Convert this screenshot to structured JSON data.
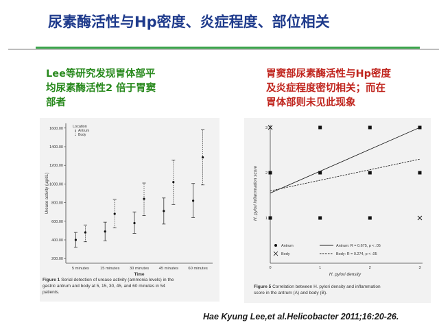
{
  "slide": {
    "title": "尿素酶活性与Hp密度、炎症程度、部位相关",
    "left_note": [
      "Lee等研究发现胃体部平",
      "均尿素酶活性2 倍于胃窦",
      "部者"
    ],
    "right_note": [
      "胃窦部尿素酶活性与Hp密度",
      "及炎症程度密切相关；而在",
      "胃体部则未见此现象"
    ],
    "citation": "Hae Kyung Lee,et al.Helicobacter 2011;16:20-26."
  },
  "figure1": {
    "caption_label": "Figure 1",
    "caption_lines": [
      "Serial detection of urease activity (ammonia levels) in the",
      "gastric antrum and body at 5, 15, 30, 45, and 60 minutes in 54",
      "patients."
    ],
    "chart_data": {
      "type": "scatter",
      "ylabel": "Urease activity (μg/dL)",
      "xlabel": "Time",
      "categories": [
        "5 minutes",
        "15 minutes",
        "30 minutes",
        "45 minutes",
        "60 minutes"
      ],
      "yticks": [
        "1600.00",
        "1400.00",
        "1200.00",
        "1000.00",
        "800.00",
        "600.00",
        "400.00",
        "200.00"
      ],
      "ylim": [
        150,
        1650
      ],
      "legend_title": "Location",
      "series": [
        {
          "name": "Antrum",
          "style": "solid",
          "mean": [
            400,
            490,
            580,
            710,
            820
          ],
          "lower": [
            320,
            390,
            470,
            570,
            640
          ],
          "upper": [
            480,
            590,
            700,
            850,
            1005
          ]
        },
        {
          "name": "Body",
          "style": "dotted",
          "mean": [
            480,
            680,
            840,
            1020,
            1285
          ],
          "lower": [
            380,
            530,
            660,
            780,
            990
          ],
          "upper": [
            560,
            835,
            1010,
            1255,
            1585
          ]
        }
      ]
    }
  },
  "figure5": {
    "caption_label": "Figure 5",
    "caption_lines": [
      "Correlation between H. pylori density and inflammation",
      "score in the antrum (A) and body (B)."
    ],
    "chart_data": {
      "type": "scatter",
      "ylabel": "H. pylori inflammation score",
      "xlabel": "H. pylori density",
      "xticks": [
        "0",
        "1",
        "2",
        "3"
      ],
      "yticks": [
        "0",
        "1",
        "2",
        "3"
      ],
      "xlim": [
        0,
        3
      ],
      "ylim": [
        0,
        3
      ],
      "series": [
        {
          "name": "Antrum",
          "marker": "square",
          "points": [
            [
              0,
              1
            ],
            [
              0,
              2
            ],
            [
              1,
              1
            ],
            [
              1,
              2
            ],
            [
              1,
              3
            ],
            [
              2,
              1
            ],
            [
              2,
              2
            ],
            [
              2,
              3
            ],
            [
              3,
              2
            ],
            [
              3,
              3
            ]
          ]
        },
        {
          "name": "Body",
          "marker": "x",
          "points": [
            [
              0,
              3
            ],
            [
              3,
              1
            ]
          ]
        }
      ],
      "fit_lines": [
        {
          "name": "Antrum",
          "style": "solid",
          "label": "Antrum: R = 0.675, p < .05",
          "from": [
            0,
            1.55
          ],
          "to": [
            3,
            3.0
          ]
        },
        {
          "name": "Body",
          "style": "dashed",
          "label": "Body: R = 0.274, p < .05",
          "from": [
            0,
            1.6
          ],
          "to": [
            3,
            2.3
          ]
        }
      ]
    }
  }
}
